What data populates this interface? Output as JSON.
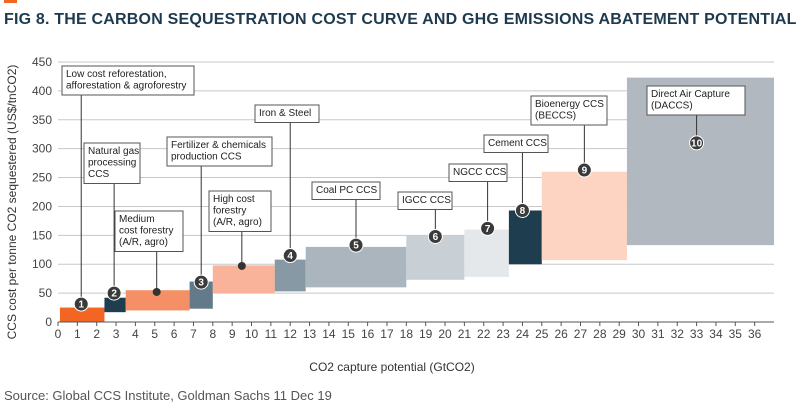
{
  "figure": {
    "title": "FIG 8. THE CARBON SEQUESTRATION COST CURVE AND GHG EMISSIONS ABATEMENT POTENTIAL",
    "source": "Source: Global CCS Institute, Goldman Sachs 11 Dec 19",
    "accent_color": "#f26522",
    "title_color": "#1d3a4f"
  },
  "chart_data": {
    "type": "bar",
    "subtype": "variable-width cost curve",
    "xlabel": "CO2 capture potential  (GtCO2)",
    "ylabel": "CCS cost per tonne CO2 sequestered (US$/tnCO2)",
    "xlim": [
      0,
      37
    ],
    "ylim": [
      0,
      450
    ],
    "xticks": [
      0,
      1,
      2,
      3,
      4,
      5,
      6,
      7,
      8,
      9,
      10,
      11,
      12,
      13,
      14,
      15,
      16,
      17,
      18,
      19,
      20,
      21,
      22,
      23,
      24,
      25,
      26,
      27,
      28,
      29,
      30,
      31,
      32,
      33,
      34,
      35,
      36
    ],
    "yticks": [
      0,
      50,
      100,
      150,
      200,
      250,
      300,
      350,
      400,
      450
    ],
    "grid": "horizontal",
    "legend": "none",
    "segments": [
      {
        "id": "1",
        "label": "Low cost reforestation,\nafforestation & agroforestry",
        "x0": 0.1,
        "x1": 2.4,
        "y0": 0,
        "y1": 25,
        "color": "#f26522",
        "marker": "center"
      },
      {
        "id": "2",
        "label": "Natural gas\nprocessing\nCCS",
        "x0": 2.4,
        "x1": 3.5,
        "y0": 17,
        "y1": 42,
        "color": "#1e3d4f",
        "marker": "top"
      },
      {
        "id": "3",
        "label": "Medium\ncost forestry\n(A/R, agro)",
        "x0": 3.5,
        "x1": 6.8,
        "y0": 20,
        "y1": 55,
        "color": "#f58f66",
        "marker": "center"
      },
      {
        "id": "4",
        "label": "Fertilizer & chemicals\nproduction CCS",
        "x0": 6.8,
        "x1": 8.0,
        "y0": 23,
        "y1": 70,
        "color": "#627a89",
        "marker": "center"
      },
      {
        "id": "5",
        "label": "High cost\nforestry\n(A/R, agro)",
        "x0": 8.0,
        "x1": 11.2,
        "y0": 50,
        "y1": 98,
        "color": "#f8b39a",
        "marker": "center"
      },
      {
        "id": "6",
        "label": "Iron & Steel",
        "x0": 11.2,
        "x1": 12.8,
        "y0": 53,
        "y1": 108,
        "color": "#8899a6",
        "marker": "center"
      },
      {
        "id": "7",
        "label": "Coal PC CCS",
        "x0": 12.8,
        "x1": 18.0,
        "y0": 60,
        "y1": 130,
        "color": "#aab5be",
        "marker": "center"
      },
      {
        "id": "8",
        "label": "IGCC CCS",
        "x0": 18.0,
        "x1": 21.0,
        "y0": 73,
        "y1": 150,
        "color": "#c8cfd5",
        "marker": "center"
      },
      {
        "id": "9",
        "label": "NGCC CCS",
        "x0": 21.0,
        "x1": 23.3,
        "y0": 78,
        "y1": 160,
        "color": "#e4e8eb",
        "marker": "center"
      },
      {
        "id": "10",
        "label": "Cement CCS",
        "x0": 23.3,
        "x1": 25.0,
        "y0": 100,
        "y1": 193,
        "color": "#1e3d4f",
        "marker": "top"
      },
      {
        "id": "11",
        "label": "Bioenergy CCS\n(BECCS)",
        "x0": 25.0,
        "x1": 29.4,
        "y0": 107,
        "y1": 260,
        "color": "#fdd3c1",
        "marker": "top"
      },
      {
        "id": "12",
        "label": "Direct Air Capture\n(DACCS)",
        "x0": 29.4,
        "x1": 37.0,
        "y0": 133,
        "y1": 423,
        "color": "#b2b8bf",
        "marker": "top"
      }
    ],
    "badges": [
      {
        "text": "1",
        "x": 1.2,
        "y": 31,
        "segment": "1"
      },
      {
        "text": "2",
        "x": 2.9,
        "y": 50,
        "segment": "2"
      },
      {
        "text": "3",
        "x": 7.4,
        "y": 69,
        "segment": "4"
      },
      {
        "text": "4",
        "x": 12.0,
        "y": 115,
        "segment": "6"
      },
      {
        "text": "5",
        "x": 15.4,
        "y": 133,
        "segment": "7"
      },
      {
        "text": "6",
        "x": 19.5,
        "y": 148,
        "segment": "8"
      },
      {
        "text": "7",
        "x": 22.2,
        "y": 162,
        "segment": "9"
      },
      {
        "text": "8",
        "x": 24.0,
        "y": 193,
        "segment": "10"
      },
      {
        "text": "9",
        "x": 27.2,
        "y": 263,
        "segment": "11"
      },
      {
        "text": "10",
        "x": 33.0,
        "y": 310,
        "segment": "12"
      }
    ],
    "badge_color": "#3a3a3a"
  }
}
